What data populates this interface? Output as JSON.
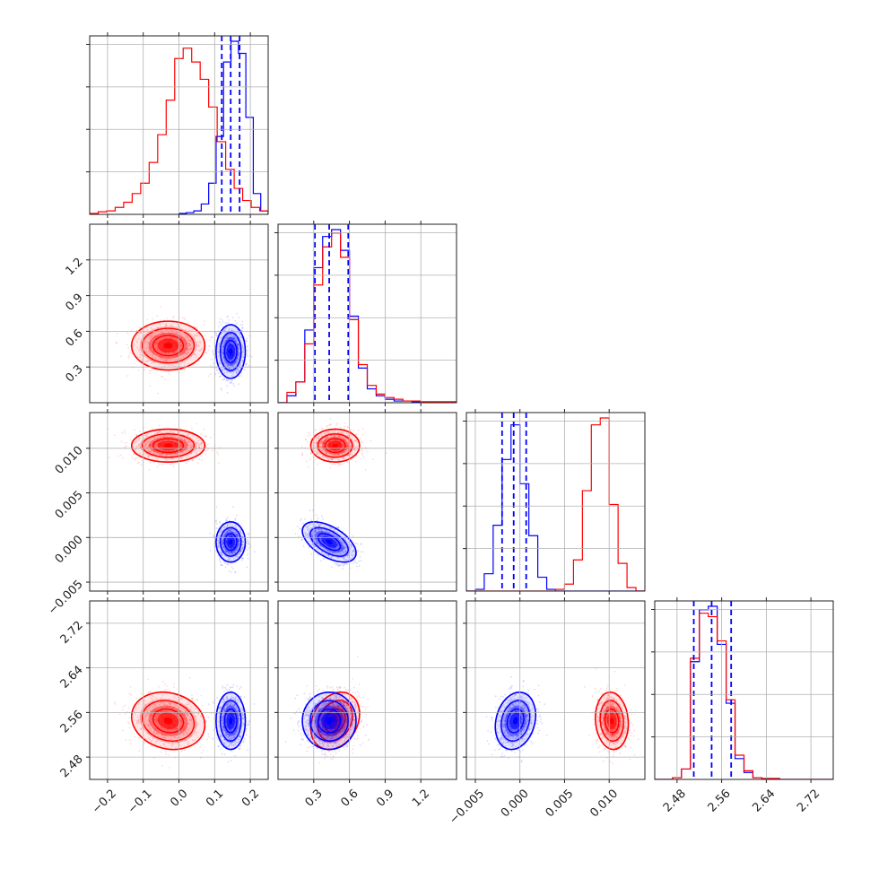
{
  "chart_data": {
    "type": "corner",
    "grid": true,
    "colors": {
      "red_series": "#ff0000",
      "blue_series": "#0000ff"
    },
    "series": [
      {
        "color": "#ff0000",
        "means": [
          -0.03,
          0.48,
          0.0103,
          2.545
        ],
        "stds": [
          0.05,
          0.1,
          0.0009,
          0.025
        ],
        "corr": {
          "0-3": -0.15,
          "1-2": 0.0,
          "1-3": 0.25,
          "2-3": -0.1,
          "0-1": 0.0,
          "0-2": 0.0
        }
      },
      {
        "color": "#0000ff",
        "means": [
          0.145,
          0.43,
          -0.0005,
          2.545
        ],
        "stds": [
          0.02,
          0.11,
          0.0011,
          0.025
        ],
        "corr": {
          "1-2": -0.55,
          "2-3": 0.2,
          "0-1": 0.0,
          "0-2": 0.0,
          "0-3": 0.0,
          "1-3": 0.0
        }
      }
    ],
    "parameters": [
      {
        "range": [
          -0.25,
          0.25
        ],
        "ticks": [
          -0.2,
          -0.1,
          0.0,
          0.1,
          0.2
        ],
        "tick_labels": [
          "−0.2",
          "−0.1",
          "0.0",
          "0.1",
          "0.2"
        ],
        "quantile_lines": [
          0.12,
          0.145,
          0.17
        ],
        "hist_red": [
          0.5,
          1.5,
          2,
          4,
          7,
          12,
          18,
          30,
          46,
          66,
          90,
          96,
          88,
          78,
          62,
          42,
          26,
          15,
          8,
          4,
          2
        ],
        "hist_blue": [
          0.5,
          1,
          2,
          6,
          18,
          45,
          88,
          100,
          93,
          56,
          12,
          2
        ],
        "hist_blue_start": 0.0
      },
      {
        "range": [
          0.0,
          1.5
        ],
        "ticks": [
          0.3,
          0.6,
          0.9,
          1.2
        ],
        "tick_labels": [
          "0.3",
          "0.6",
          "0.9",
          "1.2"
        ],
        "quantile_lines": [
          0.31,
          0.43,
          0.59
        ],
        "hist_red": [
          0,
          6,
          12,
          34,
          68,
          90,
          98,
          84,
          48,
          22,
          10,
          5,
          3,
          2,
          1,
          1,
          0.5,
          0.5,
          0.5,
          0.5
        ],
        "hist_blue": [
          0,
          4,
          12,
          42,
          78,
          96,
          100,
          88,
          50,
          20,
          8,
          4,
          2,
          1,
          1,
          0.5,
          0.5,
          0.5,
          0.5,
          0.5
        ]
      },
      {
        "range": [
          -0.006,
          0.014
        ],
        "ticks": [
          -0.005,
          0.0,
          0.005,
          0.01
        ],
        "tick_labels": [
          "−0.005",
          "0.000",
          "0.005",
          "0.010"
        ],
        "quantile_lines": [
          -0.002,
          -0.0007,
          0.0007
        ],
        "hist_blue": [
          0,
          1,
          10,
          38,
          76,
          96,
          62,
          32,
          8,
          1,
          0,
          0,
          0,
          0,
          0,
          0,
          0,
          0,
          0,
          0
        ],
        "hist_red": [
          0,
          0,
          0,
          0,
          0,
          0,
          0,
          0,
          0,
          0,
          1,
          4,
          18,
          58,
          96,
          100,
          50,
          16,
          2,
          0
        ]
      },
      {
        "range": [
          2.44,
          2.76
        ],
        "ticks": [
          2.48,
          2.56,
          2.64,
          2.72
        ],
        "tick_labels": [
          "2.48",
          "2.56",
          "2.64",
          "2.72"
        ],
        "quantile_lines": [
          2.51,
          2.542,
          2.577
        ],
        "hist_blue": [
          0,
          0,
          1,
          6,
          68,
          98,
          100,
          78,
          44,
          12,
          4,
          1,
          0.5,
          0.5,
          0,
          0,
          0,
          0,
          0,
          0
        ],
        "hist_red": [
          0,
          0,
          1,
          6,
          70,
          96,
          94,
          80,
          46,
          14,
          5,
          1,
          0.5,
          0.5,
          0,
          0,
          0,
          0,
          0,
          0
        ]
      }
    ]
  }
}
